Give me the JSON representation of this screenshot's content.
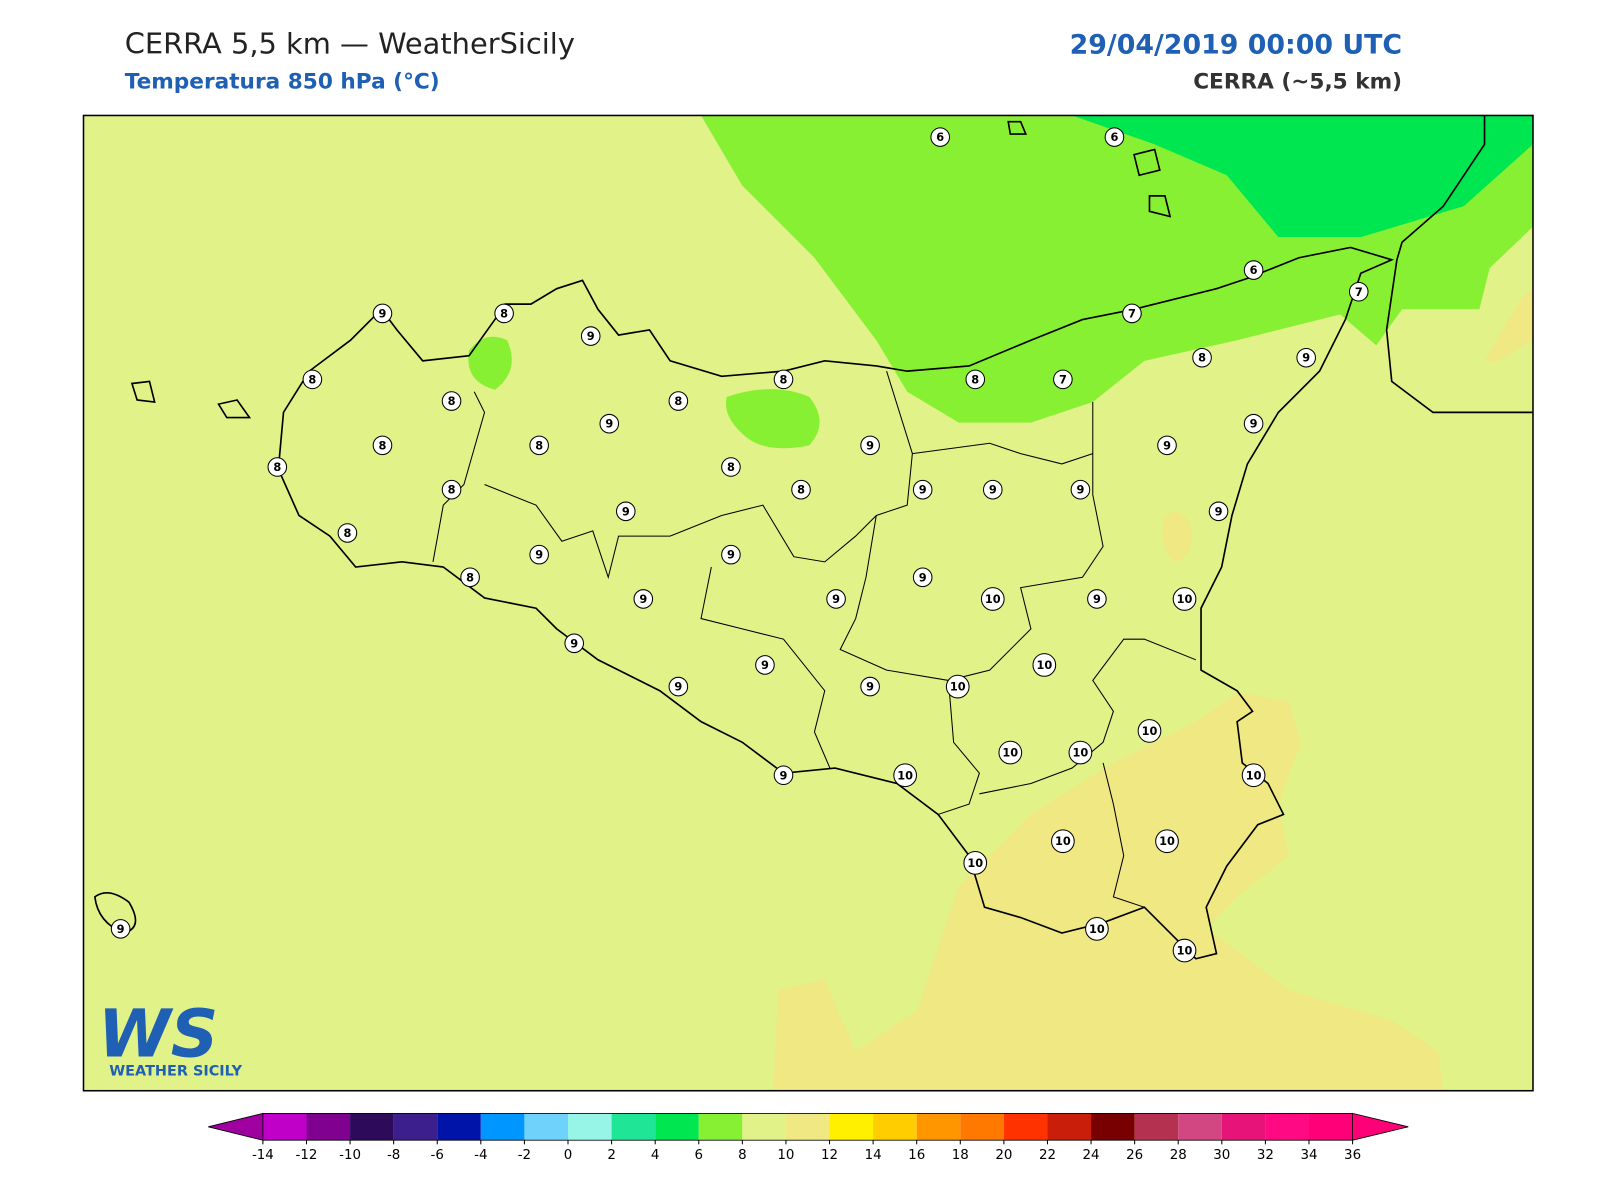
{
  "header": {
    "title": "CERRA 5,5 km — WeatherSicily",
    "subtitle": "Temperatura 850 hPa (°C)",
    "date": "29/04/2019 00:00 UTC",
    "model": "CERRA (~5,5 km)"
  },
  "stations": {
    "values": [
      6,
      6,
      6,
      7,
      7,
      7,
      8,
      8,
      9,
      9,
      9,
      9,
      9,
      9,
      9,
      9,
      8,
      8,
      9,
      9,
      8,
      9,
      8,
      8,
      8,
      8,
      8,
      8,
      8,
      8,
      8,
      9,
      9,
      9,
      9,
      9,
      9,
      8,
      10,
      9,
      10,
      10,
      10,
      9,
      9,
      9,
      9,
      10,
      10,
      10,
      10,
      10,
      9,
      10,
      10,
      10,
      10,
      10,
      9
    ]
  },
  "colorbar": {
    "ticks": [
      -14,
      -12,
      -10,
      -8,
      -6,
      -4,
      -2,
      0,
      2,
      4,
      6,
      8,
      10,
      12,
      14,
      16,
      18,
      20,
      22,
      24,
      26,
      28,
      30,
      32,
      34,
      36
    ],
    "colors": [
      "#c000c8",
      "#800090",
      "#2d0a5a",
      "#3c1e8c",
      "#0014aa",
      "#0096ff",
      "#6ed2fa",
      "#96f5e6",
      "#1ee696",
      "#00e650",
      "#88f032",
      "#e0f288",
      "#f0e882",
      "#fff000",
      "#ffcd00",
      "#ff9600",
      "#ff7800",
      "#ff3200",
      "#c81e0a",
      "#780000",
      "#b43250",
      "#d24682",
      "#e61478",
      "#ff0a82",
      "#ff0078"
    ],
    "under_color": "#a000a0",
    "over_color": "#ff0078"
  },
  "logo": {
    "mark": "WS",
    "name": "WEATHER SICILY"
  }
}
